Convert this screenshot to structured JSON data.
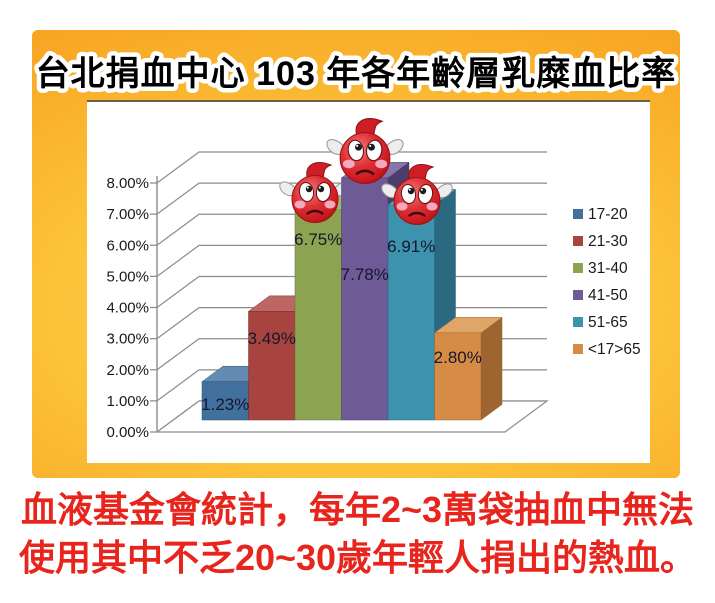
{
  "title": "台北捐血中心 103 年各年齡層乳糜血比率",
  "caption": {
    "line1": "血液基金會統計，每年2~3萬袋抽血中無法",
    "line2": "使用其中不乏20~30歲年輕人捐出的熱血。"
  },
  "chart_data": {
    "type": "bar",
    "style": "3d-column",
    "title": "台北捐血中心 103 年各年齡層乳糜血比率",
    "categories": [
      "17-20",
      "21-30",
      "31-40",
      "41-50",
      "51-65",
      "<17>65"
    ],
    "values": [
      1.23,
      3.49,
      6.75,
      7.78,
      6.91,
      2.8
    ],
    "value_labels": [
      "1.23%",
      "3.49%",
      "6.75%",
      "7.78%",
      "6.91%",
      "2.80%"
    ],
    "ytick_labels": [
      "0.00%",
      "1.00%",
      "2.00%",
      "3.00%",
      "4.00%",
      "5.00%",
      "6.00%",
      "7.00%",
      "8.00%"
    ],
    "ylim": [
      0,
      8
    ],
    "ylabel": "",
    "xlabel": "",
    "grid": true,
    "legend_position": "right",
    "bar_colors": {
      "front": [
        "#41709D",
        "#A84440",
        "#8CA351",
        "#6D5A96",
        "#3D92AE",
        "#D68C44"
      ],
      "top": [
        "#648CB3",
        "#BE6663",
        "#A6B671",
        "#8875AC",
        "#65A9C0",
        "#E0A668"
      ],
      "side": [
        "#2C4F71",
        "#77302D",
        "#64753A",
        "#4C3E6C",
        "#2A697F",
        "#9E6530"
      ]
    }
  },
  "colors": {
    "poster_gradient_center": "#FED257",
    "poster_gradient_edge": "#F2961B",
    "caption_red": "#E8251D",
    "title_fill": "#000000",
    "title_outline": "#FFFFFF",
    "grid_gray": "#8C8C8C",
    "label_dark": "#17172B",
    "drop_red": "#D42A2F"
  }
}
